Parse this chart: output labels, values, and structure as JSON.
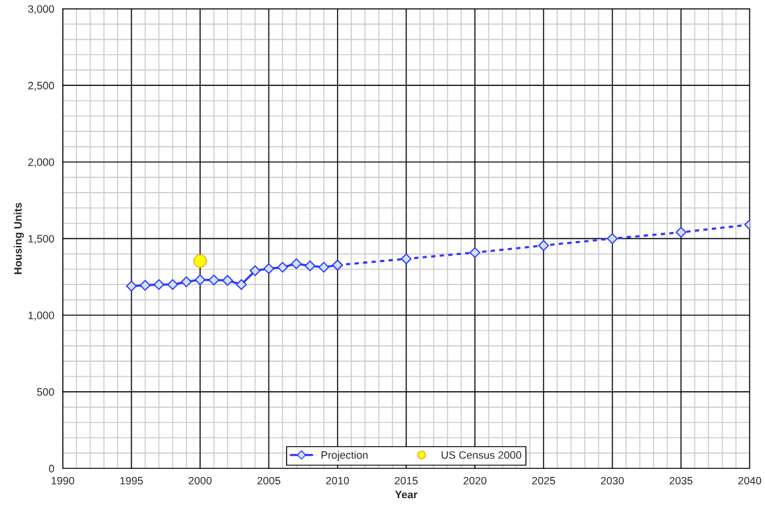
{
  "chart_data": {
    "type": "line",
    "xlabel": "Year",
    "ylabel": "Housing Units",
    "xlim": [
      1990,
      2040
    ],
    "xticks": [
      1990,
      1995,
      2000,
      2005,
      2010,
      2015,
      2020,
      2025,
      2030,
      2035,
      2040
    ],
    "ylim": [
      0,
      3000
    ],
    "yticks": [
      {
        "value": 0,
        "label": "0"
      },
      {
        "value": 500,
        "label": "500"
      },
      {
        "value": 1000,
        "label": "1,000"
      },
      {
        "value": 1500,
        "label": "1,500"
      },
      {
        "value": 2000,
        "label": "2,000"
      },
      {
        "value": 2500,
        "label": "2,500"
      },
      {
        "value": 3000,
        "label": "3,000"
      }
    ],
    "grid": true,
    "legend": "bottom",
    "series": [
      {
        "name": "Projection",
        "color": "#3333ff",
        "marker": "diamond",
        "line_style": "solid",
        "x": [
          1995,
          1996,
          1997,
          1998,
          1999,
          2000,
          2001,
          2002,
          2003,
          2004,
          2005,
          2006,
          2007,
          2008,
          2009,
          2010
        ],
        "values": [
          1190,
          1195,
          1200,
          1200,
          1218,
          1231,
          1230,
          1227,
          1200,
          1290,
          1304,
          1313,
          1336,
          1322,
          1313,
          1327
        ]
      },
      {
        "color": "#3333ff",
        "marker": "diamond",
        "line_style": "dashed",
        "x": [
          2010,
          2015,
          2020,
          2025,
          2030,
          2035,
          2040
        ],
        "values": [
          1327,
          1368,
          1409,
          1455,
          1500,
          1541,
          1591
        ]
      },
      {
        "name": "US Census 2000",
        "type": "scatter",
        "color": "#ffff00",
        "marker": "circle",
        "x": [
          2000
        ],
        "values": [
          1354
        ]
      }
    ]
  }
}
